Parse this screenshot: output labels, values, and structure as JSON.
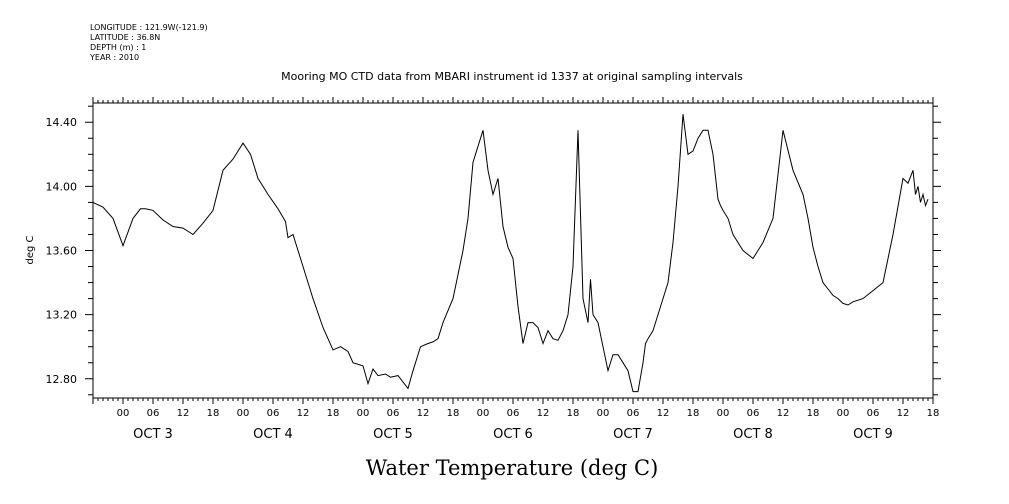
{
  "header_meta": [
    "LONGITUDE : 121.9W(-121.9)",
    "LATITUDE : 36.8N",
    "DEPTH (m) : 1",
    "YEAR : 2010"
  ],
  "chart_data": {
    "type": "line",
    "title": "Mooring MO CTD data from MBARI instrument id 1337 at original sampling intervals",
    "xlabel": "Water Temperature (deg C)",
    "ylabel": "deg C",
    "ylim": [
      12.68,
      14.52
    ],
    "xlim_hours": [
      -6,
      162
    ],
    "y_ticks": [
      12.8,
      13.2,
      13.6,
      14.0,
      14.4
    ],
    "y_tick_labels": [
      "12.80",
      "13.20",
      "13.60",
      "14.00",
      "14.40"
    ],
    "hour_ticks": [
      "00",
      "06",
      "12",
      "18",
      "00",
      "06",
      "12",
      "18",
      "00",
      "06",
      "12",
      "18",
      "00",
      "06",
      "12",
      "18",
      "00",
      "06",
      "12",
      "18",
      "00",
      "06",
      "12",
      "18",
      "00",
      "06",
      "12",
      "18"
    ],
    "day_labels": [
      "OCT 3",
      "OCT 4",
      "OCT 5",
      "OCT 6",
      "OCT 7",
      "OCT 8",
      "OCT 9"
    ],
    "x_unit": "hours since Oct 3 00:00",
    "series": [
      {
        "x": [
          -6,
          -4,
          -2,
          0,
          2,
          3.5,
          4.5,
          6,
          8,
          10,
          12,
          14,
          16,
          18,
          20,
          22,
          24,
          25.5,
          27,
          29,
          31,
          32.5,
          33,
          34,
          36,
          38,
          40,
          42,
          43.5,
          45,
          46,
          48,
          49,
          50,
          51,
          52.5,
          53.5,
          55,
          57,
          58,
          59.5,
          61,
          62,
          63,
          64,
          66,
          68,
          69,
          70,
          72,
          73,
          74,
          75,
          76,
          77,
          78,
          79,
          80,
          81,
          82,
          83,
          84,
          85,
          86,
          87,
          88,
          89,
          90,
          91,
          92,
          93,
          93.5,
          94,
          95,
          96,
          97,
          98,
          99,
          100,
          101,
          102,
          103,
          104,
          104.5,
          105,
          106,
          107,
          108,
          109,
          110,
          111,
          112,
          113,
          114,
          115,
          116,
          117,
          118,
          119,
          119.5,
          120,
          121,
          122,
          124,
          126,
          127,
          128,
          130,
          132,
          134,
          136,
          137,
          138,
          139,
          140,
          141,
          142,
          143,
          144,
          145,
          146,
          148,
          150,
          152,
          154,
          156,
          157,
          158,
          158.5,
          159,
          159.5,
          160,
          160.5,
          161
        ],
        "values": [
          13.9,
          13.87,
          13.8,
          13.63,
          13.8,
          13.86,
          13.86,
          13.85,
          13.79,
          13.75,
          13.74,
          13.7,
          13.77,
          13.85,
          14.1,
          14.17,
          14.27,
          14.2,
          14.05,
          13.95,
          13.86,
          13.78,
          13.68,
          13.7,
          13.5,
          13.3,
          13.12,
          12.98,
          13.0,
          12.97,
          12.9,
          12.88,
          12.77,
          12.86,
          12.82,
          12.83,
          12.81,
          12.82,
          12.74,
          12.85,
          13.0,
          13.02,
          13.03,
          13.05,
          13.15,
          13.3,
          13.6,
          13.8,
          14.15,
          14.35,
          14.1,
          13.95,
          14.05,
          13.75,
          13.62,
          13.55,
          13.25,
          13.02,
          13.15,
          13.15,
          13.12,
          13.02,
          13.1,
          13.05,
          13.04,
          13.1,
          13.2,
          13.5,
          14.35,
          13.3,
          13.15,
          13.42,
          13.2,
          13.15,
          13.0,
          12.85,
          12.95,
          12.95,
          12.9,
          12.85,
          12.72,
          12.72,
          12.9,
          13.02,
          13.05,
          13.1,
          13.2,
          13.3,
          13.4,
          13.65,
          14.0,
          14.45,
          14.2,
          14.22,
          14.3,
          14.35,
          14.35,
          14.2,
          13.92,
          13.88,
          13.85,
          13.8,
          13.7,
          13.6,
          13.55,
          13.6,
          13.65,
          13.8,
          14.35,
          14.1,
          13.95,
          13.8,
          13.62,
          13.5,
          13.4,
          13.36,
          13.32,
          13.3,
          13.27,
          13.26,
          13.28,
          13.3,
          13.35,
          13.4,
          13.7,
          14.05,
          14.02,
          14.1,
          13.95,
          14.0,
          13.9,
          13.95,
          13.88,
          13.92
        ]
      }
    ]
  }
}
